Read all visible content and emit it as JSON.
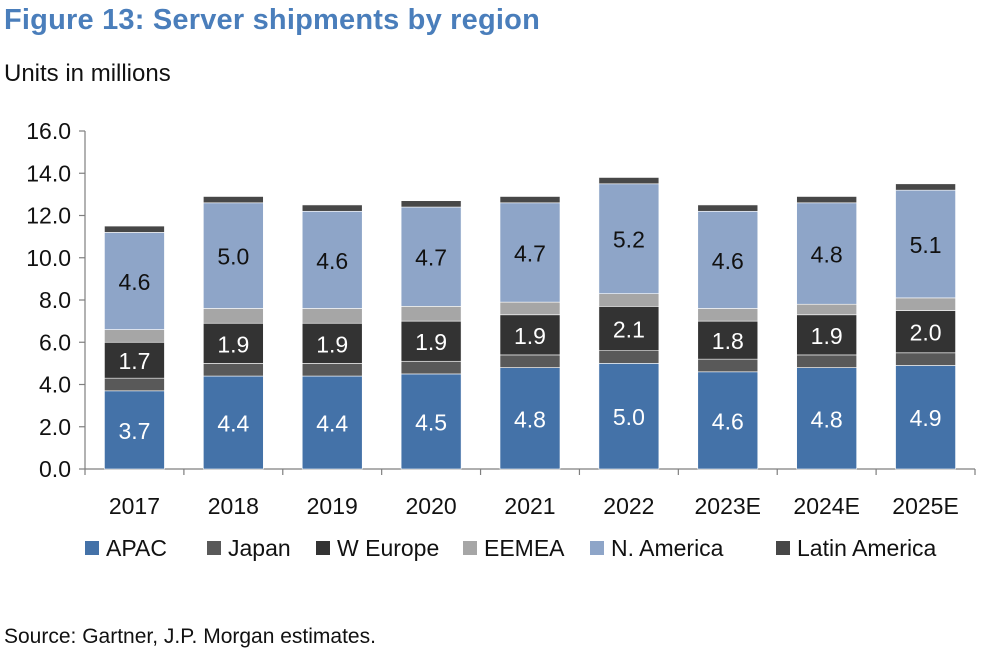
{
  "header": {
    "title": "Figure 13: Server shipments by region",
    "subtitle": "Units in millions"
  },
  "footer": {
    "source": "Source: Gartner, J.P. Morgan estimates."
  },
  "colors": {
    "title": "#4a7ebb",
    "APAC": "#4472a8",
    "Japan": "#595959",
    "W Europe": "#333333",
    "EEMEA": "#a6a6a6",
    "N. America": "#8ea5c8",
    "Latin America": "#474747"
  },
  "chart_data": {
    "type": "bar",
    "stacked": true,
    "title": "Figure 13: Server shipments by region",
    "subtitle": "Units in millions",
    "categories": [
      "2017",
      "2018",
      "2019",
      "2020",
      "2021",
      "2022",
      "2023E",
      "2024E",
      "2025E"
    ],
    "ylim": [
      0,
      16
    ],
    "yticks": [
      0,
      2,
      4,
      6,
      8,
      10,
      12,
      14,
      16
    ],
    "ytick_labels": [
      "0.0",
      "2.0",
      "4.0",
      "6.0",
      "8.0",
      "10.0",
      "12.0",
      "14.0",
      "16.0"
    ],
    "grid": false,
    "legend": "bottom",
    "series": [
      {
        "name": "APAC",
        "values": [
          3.7,
          4.4,
          4.4,
          4.5,
          4.8,
          5.0,
          4.6,
          4.8,
          4.9
        ],
        "labeled": true
      },
      {
        "name": "Japan",
        "values": [
          0.6,
          0.6,
          0.6,
          0.6,
          0.6,
          0.6,
          0.6,
          0.6,
          0.6
        ],
        "labeled": false
      },
      {
        "name": "W Europe",
        "values": [
          1.7,
          1.9,
          1.9,
          1.9,
          1.9,
          2.1,
          1.8,
          1.9,
          2.0
        ],
        "labeled": true
      },
      {
        "name": "EEMEA",
        "values": [
          0.6,
          0.7,
          0.7,
          0.7,
          0.6,
          0.6,
          0.6,
          0.5,
          0.6
        ],
        "labeled": false
      },
      {
        "name": "N. America",
        "values": [
          4.6,
          5.0,
          4.6,
          4.7,
          4.7,
          5.2,
          4.6,
          4.8,
          5.1
        ],
        "labeled": true
      },
      {
        "name": "Latin America",
        "values": [
          0.3,
          0.3,
          0.3,
          0.3,
          0.3,
          0.3,
          0.3,
          0.3,
          0.3
        ],
        "labeled": false
      }
    ],
    "data_labels": {
      "APAC": [
        "3.7",
        "4.4",
        "4.4",
        "4.5",
        "4.8",
        "5.0",
        "4.6",
        "4.8",
        "4.9"
      ],
      "W Europe": [
        "1.7",
        "1.9",
        "1.9",
        "1.9",
        "1.9",
        "2.1",
        "1.8",
        "1.9",
        "2.0"
      ],
      "N. America": [
        "4.6",
        "5.0",
        "4.6",
        "4.7",
        "4.7",
        "5.2",
        "4.6",
        "4.8",
        "5.1"
      ]
    }
  }
}
